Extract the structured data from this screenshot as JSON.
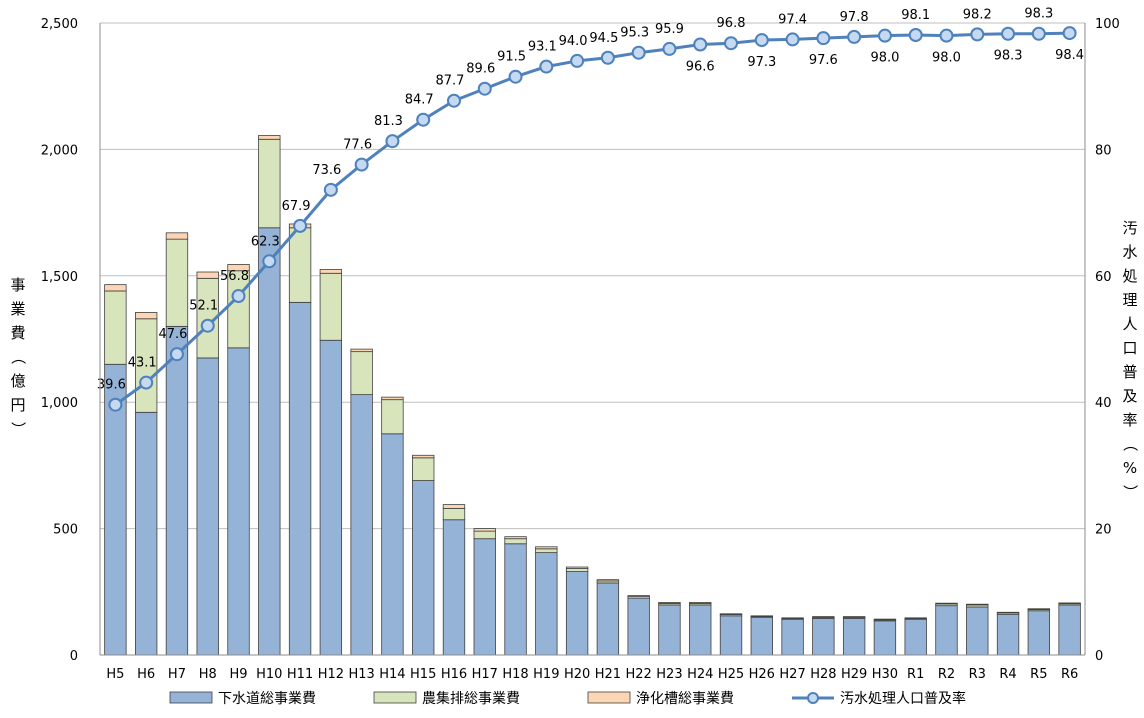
{
  "chart_data": {
    "type": "bar",
    "categories": [
      "H5",
      "H6",
      "H7",
      "H8",
      "H9",
      "H10",
      "H11",
      "H12",
      "H13",
      "H14",
      "H15",
      "H16",
      "H17",
      "H18",
      "H19",
      "H20",
      "H21",
      "H22",
      "H23",
      "H24",
      "H25",
      "H26",
      "H27",
      "H28",
      "H29",
      "H30",
      "R1",
      "R2",
      "R3",
      "R4",
      "R5",
      "R6"
    ],
    "series": [
      {
        "name": "下水道総事業費",
        "type": "bar",
        "axis": "left",
        "color": "#95B3D7",
        "values": [
          1150,
          960,
          1300,
          1175,
          1215,
          1690,
          1395,
          1245,
          1030,
          875,
          690,
          535,
          460,
          440,
          405,
          330,
          285,
          225,
          198,
          198,
          155,
          148,
          140,
          145,
          145,
          135,
          140,
          195,
          190,
          160,
          175,
          198
        ]
      },
      {
        "name": "農集排総事業費",
        "type": "bar",
        "axis": "left",
        "color": "#D8E4BC",
        "values": [
          290,
          370,
          345,
          315,
          305,
          350,
          295,
          265,
          170,
          135,
          90,
          45,
          30,
          20,
          15,
          12,
          8,
          6,
          6,
          6,
          5,
          4,
          4,
          4,
          4,
          4,
          4,
          7,
          8,
          6,
          5,
          5
        ]
      },
      {
        "name": "浄化槽総事業費",
        "type": "bar",
        "axis": "left",
        "color": "#FCD5B4",
        "values": [
          25,
          25,
          25,
          25,
          25,
          15,
          15,
          15,
          10,
          10,
          10,
          15,
          10,
          8,
          8,
          6,
          5,
          4,
          4,
          4,
          3,
          3,
          3,
          3,
          3,
          3,
          3,
          3,
          3,
          3,
          3,
          3
        ]
      },
      {
        "name": "汚水処理人口普及率",
        "type": "line",
        "axis": "right",
        "color": "#4F81BD",
        "values": [
          39.6,
          43.1,
          47.6,
          52.1,
          56.8,
          62.3,
          67.9,
          73.6,
          77.6,
          81.3,
          84.7,
          87.7,
          89.6,
          91.5,
          93.1,
          94.0,
          94.5,
          95.3,
          95.9,
          96.6,
          96.8,
          97.3,
          97.4,
          97.6,
          97.8,
          98.0,
          98.1,
          98.0,
          98.2,
          98.3,
          98.3,
          98.4
        ]
      }
    ],
    "ylabel": "事業費（億円）",
    "y2label": "汚水処理人口普及率（%）",
    "ylim": [
      0,
      2500
    ],
    "y2lim": [
      0,
      100
    ],
    "yticks": [
      "0",
      "500",
      "1,000",
      "1,500",
      "2,000",
      "2,500"
    ],
    "y2ticks": [
      "0",
      "20",
      "40",
      "60",
      "80",
      "100"
    ],
    "grid": true,
    "legend": "bottom"
  }
}
